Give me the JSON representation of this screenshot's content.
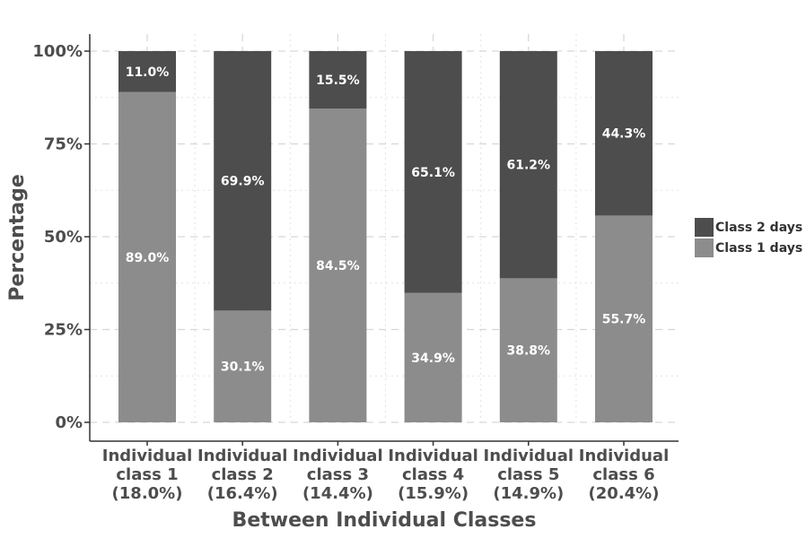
{
  "chart_data": {
    "type": "bar",
    "stacked": true,
    "title": "",
    "xlabel": "Between Individual Classes",
    "ylabel": "Percentage",
    "ylim": [
      0,
      100
    ],
    "y_ticks": [
      "0%",
      "25%",
      "50%",
      "75%",
      "100%"
    ],
    "grid": true,
    "legend_position": "right",
    "categories": [
      [
        "Individual",
        "class 1",
        "(18.0%)"
      ],
      [
        "Individual",
        "class 2",
        "(16.4%)"
      ],
      [
        "Individual",
        "class 3",
        "(14.4%)"
      ],
      [
        "Individual",
        "class 4",
        "(15.9%)"
      ],
      [
        "Individual",
        "class 5",
        "(14.9%)"
      ],
      [
        "Individual",
        "class 6",
        "(20.4%)"
      ]
    ],
    "series": [
      {
        "name": "Class 1 days",
        "color": "#8c8c8c",
        "values": [
          89.0,
          30.1,
          84.5,
          34.9,
          38.8,
          55.7
        ],
        "labels": [
          "89.0%",
          "30.1%",
          "84.5%",
          "34.9%",
          "38.8%",
          "55.7%"
        ]
      },
      {
        "name": "Class 2 days",
        "color": "#4d4d4d",
        "values": [
          11.0,
          69.9,
          15.5,
          65.1,
          61.2,
          44.3
        ],
        "labels": [
          "11.0%",
          "69.9%",
          "15.5%",
          "65.1%",
          "61.2%",
          "44.3%"
        ]
      }
    ],
    "legend_order": [
      "Class 2 days",
      "Class 1 days"
    ]
  }
}
